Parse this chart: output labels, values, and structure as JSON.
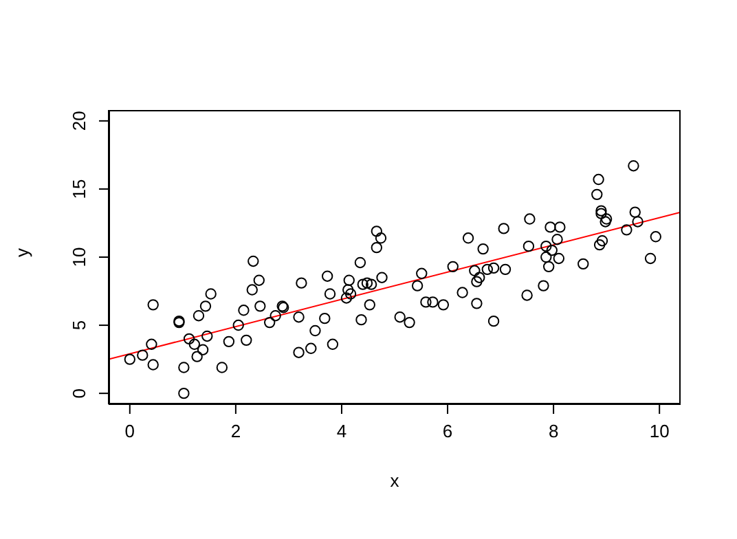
{
  "chart_data": {
    "type": "scatter",
    "xlabel": "x",
    "ylabel": "y",
    "xlim": [
      -0.4,
      10.4
    ],
    "ylim": [
      -0.8,
      20.8
    ],
    "xticks": [
      0,
      2,
      4,
      6,
      8,
      10
    ],
    "yticks": [
      0,
      5,
      10,
      15,
      20
    ],
    "grid": false,
    "legend": false,
    "marker": "circle",
    "series": [
      {
        "color": "#000000",
        "x": [
          0.0,
          0.24,
          0.44,
          0.41,
          0.44,
          0.93,
          0.93,
          1.02,
          1.02,
          1.12,
          1.22,
          1.27,
          1.38,
          1.3,
          1.43,
          1.46,
          1.53,
          1.74,
          1.87,
          2.05,
          2.15,
          2.2,
          2.31,
          2.33,
          2.44,
          2.46,
          2.64,
          2.75,
          2.88,
          2.9,
          3.19,
          3.19,
          3.24,
          3.42,
          3.5,
          3.68,
          3.73,
          3.78,
          3.83,
          4.09,
          4.12,
          4.14,
          4.17,
          4.35,
          4.37,
          4.4,
          4.48,
          4.56,
          4.53,
          4.66,
          4.74,
          4.66,
          4.76,
          5.1,
          5.28,
          5.43,
          5.51,
          5.59,
          5.72,
          5.92,
          6.1,
          6.28,
          6.39,
          6.51,
          6.55,
          6.6,
          6.55,
          6.67,
          6.75,
          6.87,
          6.87,
          7.09,
          7.06,
          7.5,
          7.53,
          7.55,
          7.81,
          7.86,
          7.86,
          7.91,
          7.94,
          7.97,
          8.07,
          8.1,
          8.12,
          8.56,
          8.82,
          8.85,
          8.87,
          8.92,
          8.9,
          8.9,
          8.98,
          9.0,
          9.38,
          9.51,
          9.54,
          9.59,
          9.83,
          9.93
        ],
        "values": [
          2.5,
          2.8,
          6.5,
          3.6,
          2.1,
          5.3,
          5.2,
          1.9,
          0.0,
          4.0,
          3.6,
          2.7,
          3.2,
          5.7,
          6.4,
          4.2,
          7.3,
          1.9,
          3.8,
          5.0,
          6.1,
          3.9,
          7.6,
          9.7,
          8.3,
          6.4,
          5.2,
          5.7,
          6.4,
          6.3,
          5.6,
          3.0,
          8.1,
          3.3,
          4.6,
          5.5,
          8.6,
          7.3,
          3.6,
          7.0,
          7.6,
          8.3,
          7.3,
          9.6,
          5.4,
          8.0,
          8.1,
          8.0,
          6.5,
          11.9,
          11.4,
          10.7,
          8.5,
          5.6,
          5.2,
          7.9,
          8.8,
          6.7,
          6.7,
          6.5,
          9.3,
          7.4,
          11.4,
          9.0,
          8.2,
          8.5,
          6.6,
          10.6,
          9.1,
          9.2,
          5.3,
          9.1,
          12.1,
          7.2,
          10.8,
          12.8,
          7.9,
          10.8,
          10.0,
          9.3,
          12.2,
          10.5,
          11.3,
          9.9,
          12.2,
          9.5,
          14.6,
          15.7,
          10.9,
          11.2,
          13.4,
          13.2,
          12.6,
          12.8,
          12.0,
          16.7,
          13.3,
          12.6,
          9.9,
          11.5
        ]
      },
      {
        "type": "line",
        "color": "#ff0000",
        "x": [
          -0.4,
          10.4
        ],
        "values": [
          2.5,
          13.3
        ],
        "line_style": "solid",
        "marker": "none"
      }
    ]
  }
}
